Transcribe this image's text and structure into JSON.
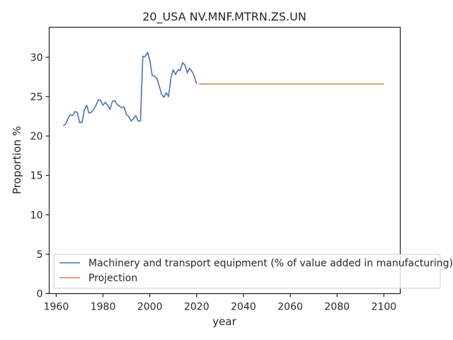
{
  "chart_data": {
    "type": "line",
    "title": "20_USA NV.MNF.MTRN.ZS.UN",
    "xlabel": "year",
    "ylabel": "Proportion %",
    "xlim": [
      1957,
      2107
    ],
    "ylim": [
      0,
      33.8
    ],
    "xticks": [
      1960,
      1980,
      2000,
      2020,
      2040,
      2060,
      2080,
      2100
    ],
    "yticks": [
      0,
      5,
      10,
      15,
      20,
      25,
      30
    ],
    "grid": false,
    "legend_position": "bottom-right",
    "series": [
      {
        "name": "Machinery and transport equipment (% of value added in manufacturing)",
        "color": "#4c72b0",
        "x": [
          1963,
          1964,
          1965,
          1966,
          1967,
          1968,
          1969,
          1970,
          1971,
          1972,
          1973,
          1974,
          1975,
          1976,
          1977,
          1978,
          1979,
          1980,
          1981,
          1982,
          1983,
          1984,
          1985,
          1986,
          1987,
          1988,
          1989,
          1990,
          1991,
          1992,
          1993,
          1994,
          1995,
          1996,
          1997,
          1998,
          1999,
          2000,
          2001,
          2002,
          2003,
          2004,
          2005,
          2006,
          2007,
          2008,
          2009,
          2010,
          2011,
          2012,
          2013,
          2014,
          2015,
          2016,
          2017,
          2018,
          2019,
          2020
        ],
        "y": [
          21.3,
          21.5,
          22.2,
          22.7,
          22.6,
          23.1,
          23.0,
          21.7,
          21.7,
          23.3,
          23.9,
          22.9,
          23.0,
          23.4,
          23.9,
          24.6,
          24.5,
          23.9,
          24.3,
          23.9,
          23.4,
          24.4,
          24.5,
          24.0,
          23.8,
          23.6,
          23.7,
          22.7,
          22.5,
          21.9,
          22.2,
          22.6,
          21.9,
          21.9,
          30.1,
          30.1,
          30.6,
          29.6,
          27.7,
          27.6,
          27.3,
          26.4,
          25.3,
          24.9,
          25.5,
          25.0,
          27.4,
          28.4,
          27.8,
          28.4,
          28.3,
          29.3,
          29.0,
          28.0,
          28.6,
          28.2,
          27.6,
          26.6
        ]
      },
      {
        "name": "Projection",
        "color": "#dd8452",
        "x": [
          2021,
          2100
        ],
        "y": [
          26.6,
          26.6
        ]
      }
    ]
  }
}
